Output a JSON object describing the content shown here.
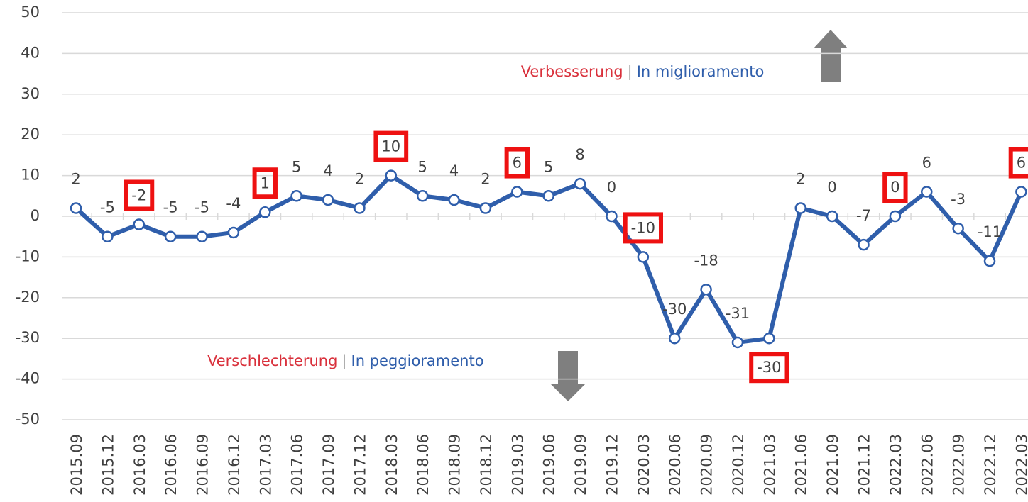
{
  "chart_data": {
    "type": "line",
    "categories": [
      "2015.09",
      "2015.12",
      "2016.03",
      "2016.06",
      "2016.09",
      "2016.12",
      "2017.03",
      "2017.06",
      "2017.09",
      "2017.12",
      "2018.03",
      "2018.06",
      "2018.09",
      "2018.12",
      "2019.03",
      "2019.06",
      "2019.09",
      "2019.12",
      "2020.03",
      "2020.06",
      "2020.09",
      "2020.12",
      "2021.03",
      "2021.06",
      "2021.09",
      "2021.12",
      "2022.03",
      "2022.06",
      "2022.09",
      "2022.12",
      "2022.03"
    ],
    "series": [
      {
        "color": "#2f5eab",
        "values": [
          2,
          -5,
          -2,
          -5,
          -5,
          -4,
          1,
          5,
          4,
          2,
          10,
          5,
          4,
          2,
          6,
          5,
          8,
          0,
          -10,
          -30,
          -18,
          -31,
          -30,
          2,
          0,
          -7,
          0,
          6,
          -3,
          -11,
          6
        ]
      }
    ],
    "ylim": [
      -50,
      50
    ],
    "yticks": [
      -50,
      -40,
      -30,
      -20,
      -10,
      0,
      10,
      20,
      30,
      40,
      50
    ],
    "grid": true,
    "highlight_color": "#ee1111",
    "annotations": [
      {
        "parts": [
          {
            "text": "Verbesserung",
            "color": "#d9303b"
          },
          {
            "text": "|",
            "color": "#a6a6a6"
          },
          {
            "text": "In miglioramento",
            "color": "#2f5eab"
          }
        ]
      },
      {
        "parts": [
          {
            "text": "Verschlechterung",
            "color": "#d9303b"
          },
          {
            "text": "|",
            "color": "#a6a6a6"
          },
          {
            "text": "In peggioramento",
            "color": "#2f5eab"
          }
        ]
      }
    ]
  }
}
